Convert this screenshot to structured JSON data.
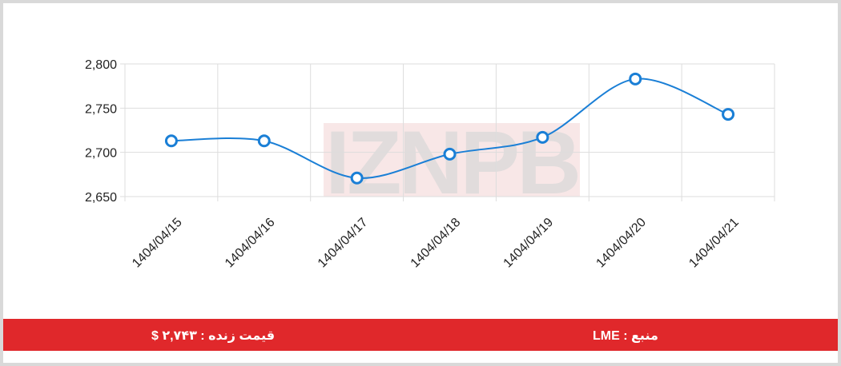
{
  "chart_data": {
    "type": "line",
    "x": [
      "1404/04/15",
      "1404/04/16",
      "1404/04/17",
      "1404/04/18",
      "1404/04/19",
      "1404/04/20",
      "1404/04/21"
    ],
    "series": [
      {
        "values": [
          2713,
          2713,
          2671,
          2698,
          2717,
          2783,
          2743
        ]
      }
    ],
    "yticks": [
      "2,650",
      "2,700",
      "2,750",
      "2,800"
    ],
    "ylim": [
      2650,
      2800
    ],
    "grid": true,
    "title": "",
    "xlabel": "",
    "ylabel": ""
  },
  "watermark": "IZNPB",
  "footer": {
    "price_label": "قیمت زنده : ۲,۷۴۳ $",
    "source_label": "منبع : LME"
  },
  "colors": {
    "line": "#1a7fd6",
    "footer_bg": "#e0282b",
    "grid": "#dddddd"
  }
}
